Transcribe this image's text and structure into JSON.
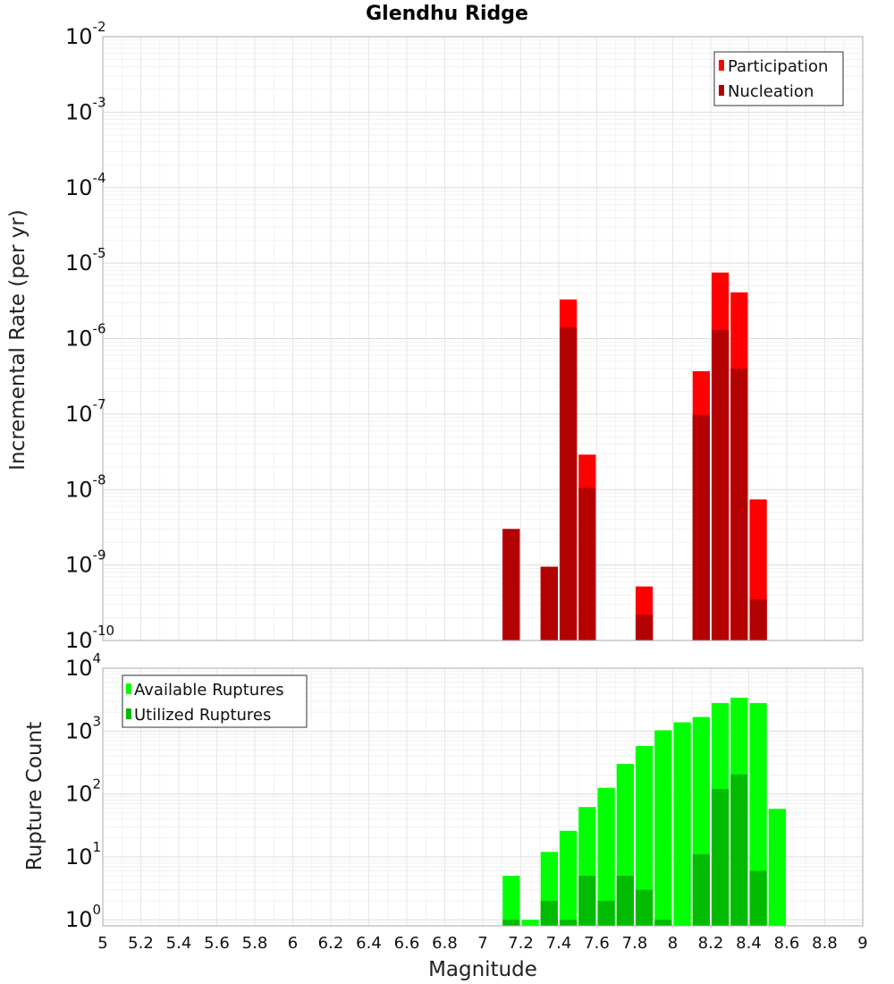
{
  "chart_data": [
    {
      "type": "bar",
      "title": "Glendhu Ridge",
      "xlabel": "",
      "ylabel": "Incremental Rate (per yr)",
      "yscale": "log",
      "ylim": [
        1e-10,
        0.01
      ],
      "xlim": [
        5,
        9
      ],
      "bin_width": 0.1,
      "legend_position": "top-right",
      "y_ticks": [
        {
          "base": "10",
          "exp": "-10"
        },
        {
          "base": "10",
          "exp": "-9"
        },
        {
          "base": "10",
          "exp": "-8"
        },
        {
          "base": "10",
          "exp": "-7"
        },
        {
          "base": "10",
          "exp": "-6"
        },
        {
          "base": "10",
          "exp": "-5"
        },
        {
          "base": "10",
          "exp": "-4"
        },
        {
          "base": "10",
          "exp": "-3"
        },
        {
          "base": "10",
          "exp": "-2"
        }
      ],
      "series": [
        {
          "name": "Participation",
          "color": "#ff0000",
          "x": [
            7.15,
            7.35,
            7.45,
            7.55,
            7.85,
            8.15,
            8.25,
            8.35,
            8.45
          ],
          "values": [
            3e-09,
            9.5e-10,
            3.3e-06,
            2.9e-08,
            5.2e-10,
            3.7e-07,
            7.5e-06,
            4.1e-06,
            7.4e-09
          ]
        },
        {
          "name": "Nucleation",
          "color": "#b30000",
          "x": [
            7.15,
            7.35,
            7.45,
            7.55,
            7.85,
            8.15,
            8.25,
            8.35,
            8.45
          ],
          "values": [
            3e-09,
            9.5e-10,
            1.4e-06,
            1.05e-08,
            2.2e-10,
            9.8e-08,
            1.3e-06,
            4e-07,
            3.5e-10
          ]
        }
      ]
    },
    {
      "type": "bar",
      "title": "",
      "xlabel": "Magnitude",
      "ylabel": "Rupture Count",
      "yscale": "log",
      "ylim": [
        0.8,
        10000
      ],
      "xlim": [
        5,
        9
      ],
      "bin_width": 0.1,
      "legend_position": "top-left",
      "x_tick_labels": [
        "5",
        "5.2",
        "5.4",
        "5.6",
        "5.8",
        "6",
        "6.2",
        "6.4",
        "6.6",
        "6.8",
        "7",
        "7.2",
        "7.4",
        "7.6",
        "7.8",
        "8",
        "8.2",
        "8.4",
        "8.6",
        "8.8",
        "9"
      ],
      "y_ticks": [
        {
          "base": "10",
          "exp": "0"
        },
        {
          "base": "10",
          "exp": "1"
        },
        {
          "base": "10",
          "exp": "2"
        },
        {
          "base": "10",
          "exp": "3"
        },
        {
          "base": "10",
          "exp": "4"
        }
      ],
      "series": [
        {
          "name": "Available Ruptures",
          "color": "#00ff00",
          "x": [
            7.15,
            7.25,
            7.35,
            7.45,
            7.55,
            7.65,
            7.75,
            7.85,
            7.95,
            8.05,
            8.15,
            8.25,
            8.35,
            8.45,
            8.55
          ],
          "values": [
            5,
            1,
            12,
            26,
            62,
            125,
            300,
            580,
            1030,
            1380,
            1680,
            2800,
            3400,
            2800,
            58
          ]
        },
        {
          "name": "Utilized Ruptures",
          "color": "#00bb00",
          "x": [
            7.15,
            7.35,
            7.45,
            7.55,
            7.65,
            7.75,
            7.85,
            7.95,
            8.15,
            8.25,
            8.35,
            8.45
          ],
          "values": [
            1,
            2,
            1,
            5,
            2,
            5,
            3,
            1,
            11,
            120,
            205,
            6
          ]
        }
      ]
    }
  ]
}
